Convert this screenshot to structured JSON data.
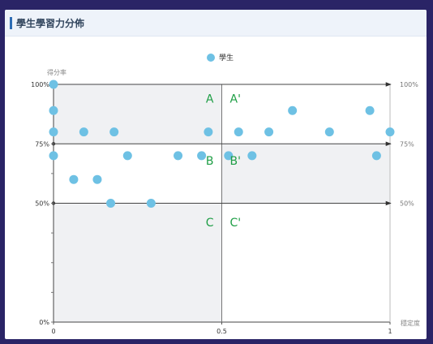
{
  "panel": {
    "title": "學生學習力分佈"
  },
  "chart_data": {
    "type": "scatter",
    "title": "",
    "legend": {
      "label": "學生",
      "position": "top",
      "color": "#6ec1e4"
    },
    "xlabel": "穩定度",
    "ylabel": "得分率",
    "xlim": [
      0,
      1
    ],
    "ylim": [
      0,
      100
    ],
    "x_ticks": [
      {
        "value": 0,
        "label": "0"
      },
      {
        "value": 0.5,
        "label": "0.5"
      },
      {
        "value": 1,
        "label": "1"
      }
    ],
    "y_ticks_left": [
      {
        "value": 0,
        "label": "0%"
      },
      {
        "value": 50,
        "label": "50%"
      },
      {
        "value": 75,
        "label": "75%"
      },
      {
        "value": 100,
        "label": "100%"
      }
    ],
    "y_ticks_right": [
      {
        "value": 50,
        "label": "50%"
      },
      {
        "value": 75,
        "label": "75%"
      },
      {
        "value": 100,
        "label": "100%"
      }
    ],
    "quadrant_labels": [
      {
        "text": "A",
        "x": 0.46,
        "y": 94
      },
      {
        "text": "A'",
        "x": 0.54,
        "y": 94
      },
      {
        "text": "B",
        "x": 0.46,
        "y": 68
      },
      {
        "text": "B'",
        "x": 0.54,
        "y": 68
      },
      {
        "text": "C",
        "x": 0.46,
        "y": 42
      },
      {
        "text": "C'",
        "x": 0.54,
        "y": 42
      }
    ],
    "series": [
      {
        "name": "學生",
        "color": "#6ec1e4",
        "points": [
          {
            "x": 0.0,
            "y": 100
          },
          {
            "x": 0.0,
            "y": 89
          },
          {
            "x": 0.0,
            "y": 80
          },
          {
            "x": 0.0,
            "y": 70
          },
          {
            "x": 0.06,
            "y": 60
          },
          {
            "x": 0.09,
            "y": 80
          },
          {
            "x": 0.13,
            "y": 60
          },
          {
            "x": 0.17,
            "y": 50
          },
          {
            "x": 0.18,
            "y": 80
          },
          {
            "x": 0.22,
            "y": 70
          },
          {
            "x": 0.29,
            "y": 50
          },
          {
            "x": 0.37,
            "y": 70
          },
          {
            "x": 0.44,
            "y": 70
          },
          {
            "x": 0.46,
            "y": 80
          },
          {
            "x": 0.52,
            "y": 70
          },
          {
            "x": 0.55,
            "y": 80
          },
          {
            "x": 0.59,
            "y": 70
          },
          {
            "x": 0.64,
            "y": 80
          },
          {
            "x": 0.71,
            "y": 89
          },
          {
            "x": 0.82,
            "y": 80
          },
          {
            "x": 0.94,
            "y": 89
          },
          {
            "x": 0.96,
            "y": 70
          },
          {
            "x": 1.0,
            "y": 80
          }
        ]
      }
    ],
    "shaded_regions": [
      {
        "x": [
          0,
          0.5
        ],
        "y": [
          75,
          100
        ],
        "color": "#f0f1f3"
      },
      {
        "x": [
          0.5,
          1
        ],
        "y": [
          50,
          75
        ],
        "color": "#f0f1f3"
      },
      {
        "x": [
          0,
          0.5
        ],
        "y": [
          0,
          50
        ],
        "color": "#f0f1f3"
      }
    ],
    "grid": false
  }
}
